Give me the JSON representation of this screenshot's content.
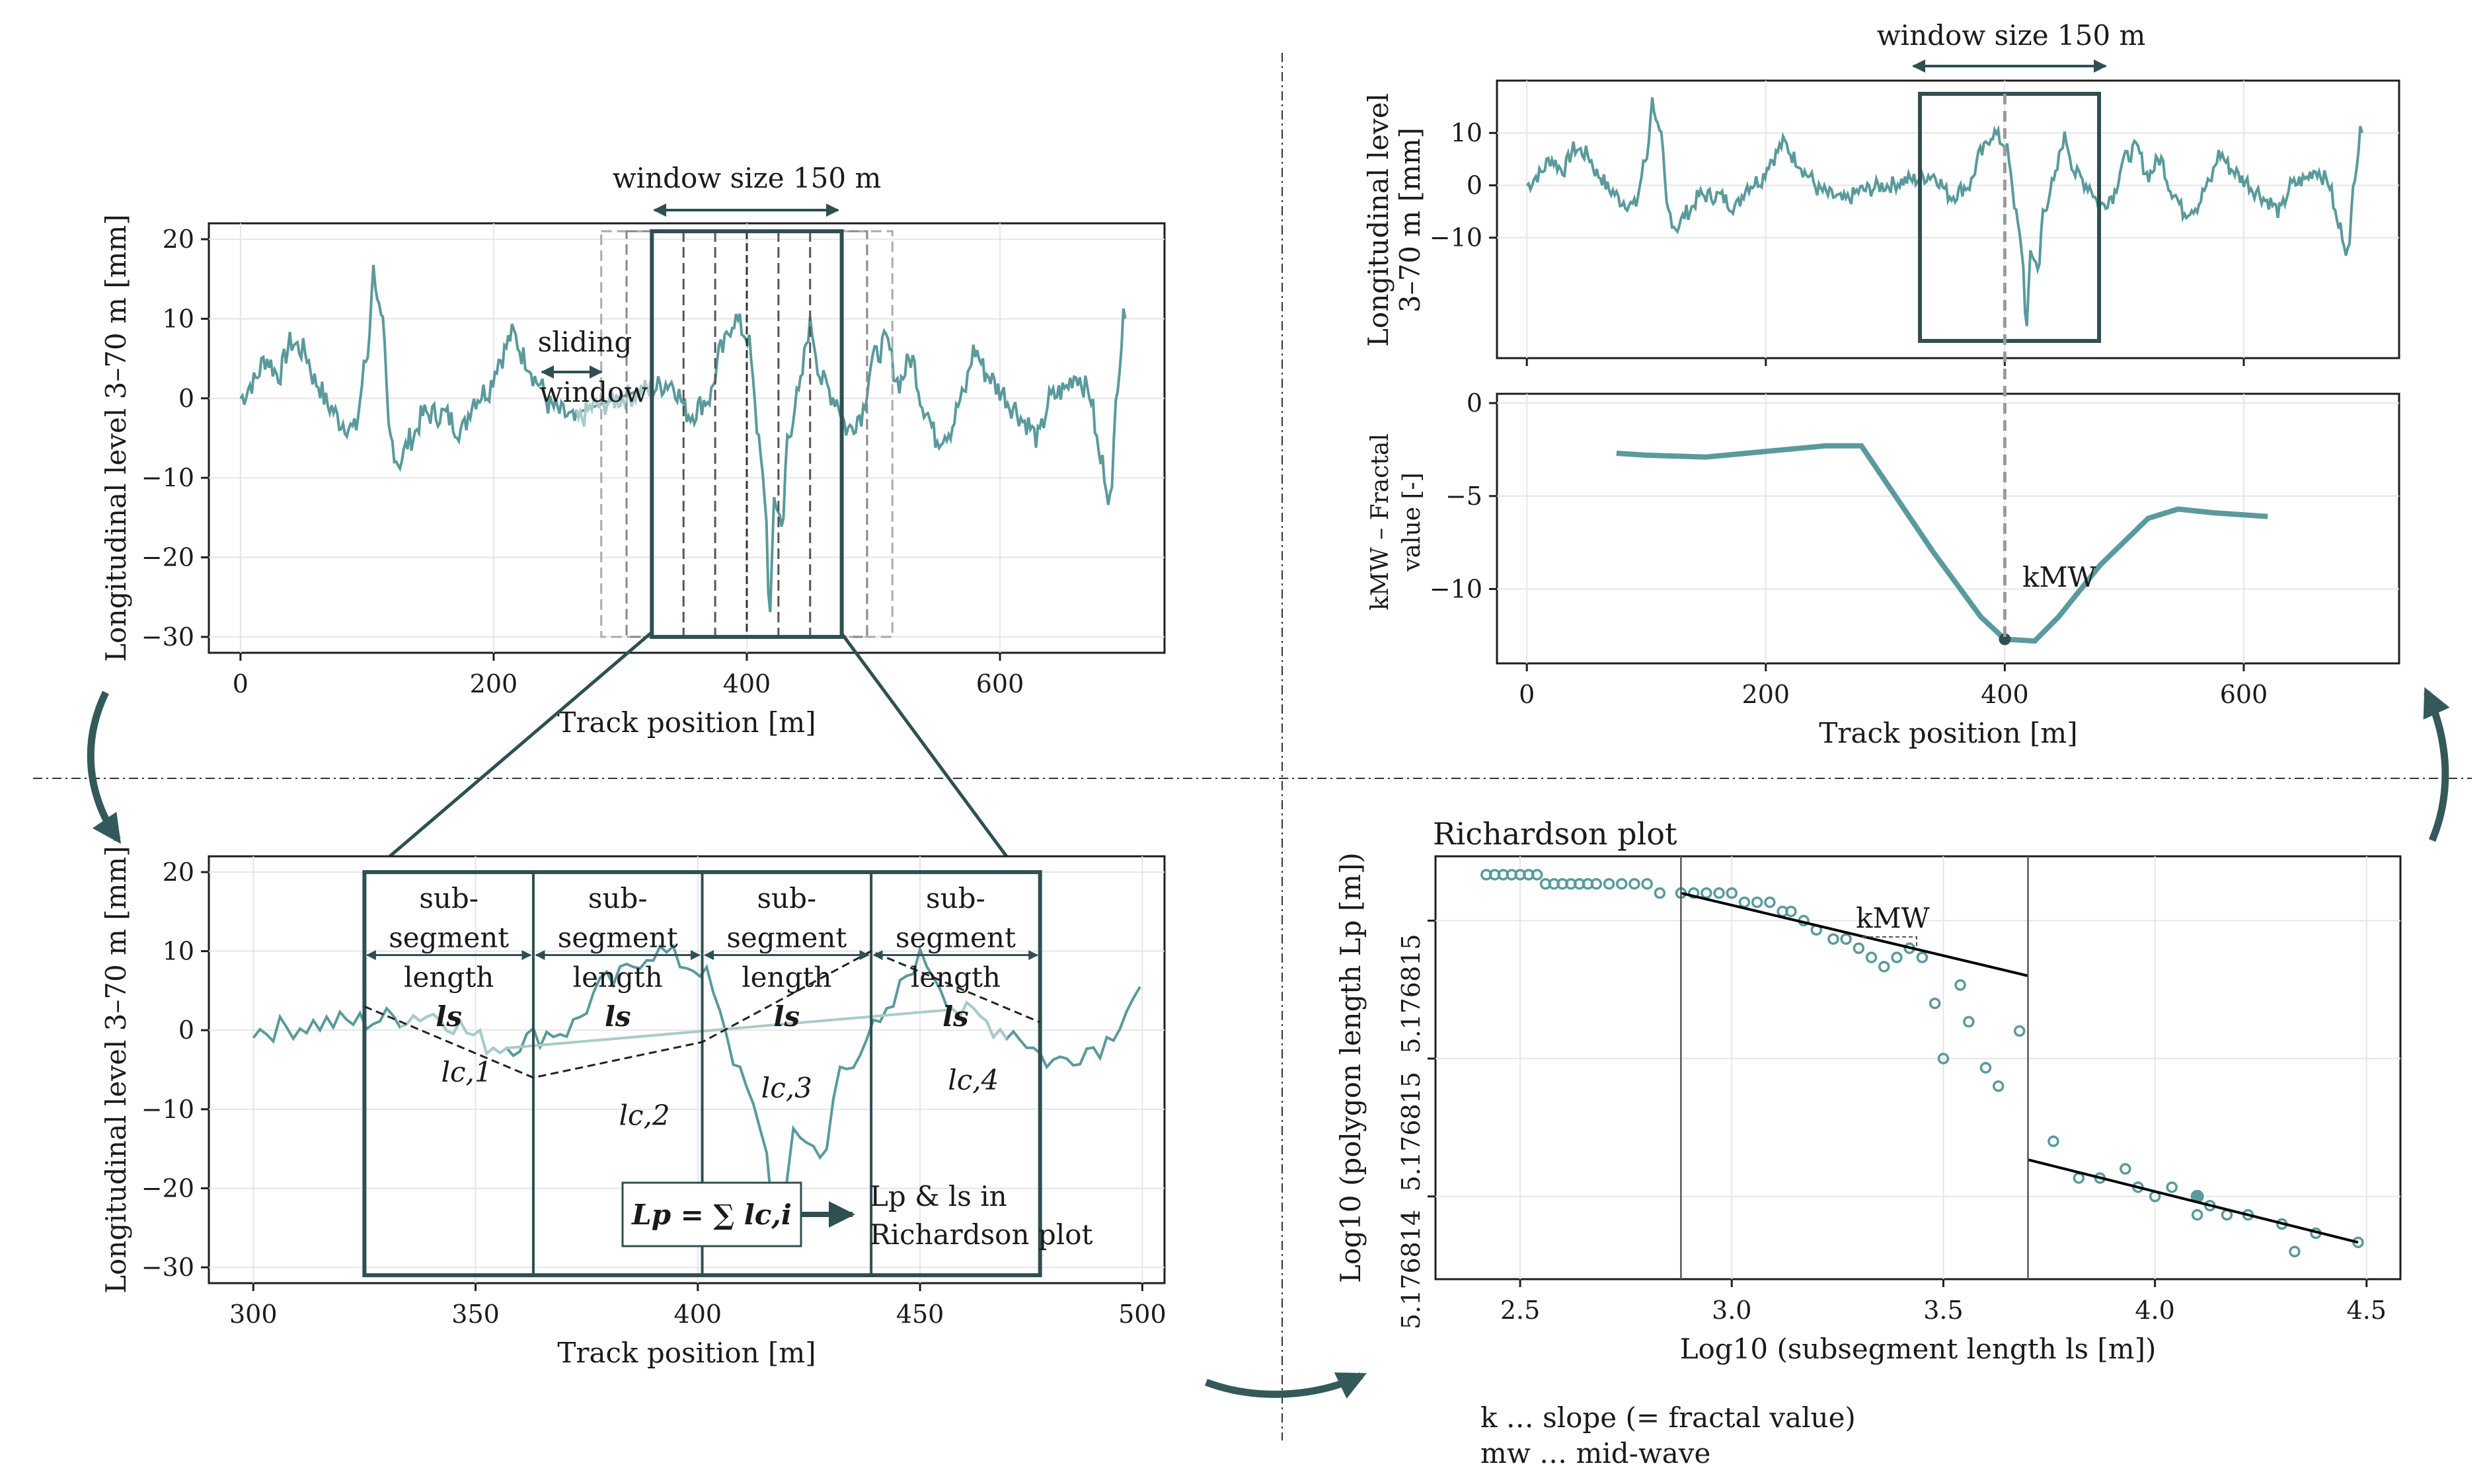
{
  "panel_a": {
    "annotation_window": "window size 150 m",
    "annotation_sliding_1": "sliding",
    "annotation_sliding_2": "window",
    "ylabel": "Longitudinal level 3–70 m [mm]",
    "xlabel": "Track position [m]",
    "yticks": [
      "20",
      "10",
      "0",
      "−10",
      "−20",
      "−30"
    ],
    "xticks": [
      "0",
      "200",
      "400",
      "600"
    ]
  },
  "panel_b": {
    "ylabel": "Longitudinal level 3–70 m [mm]",
    "xlabel": "Track position [m]",
    "yticks": [
      "20",
      "10",
      "0",
      "−10",
      "−20",
      "−30"
    ],
    "xticks": [
      "300",
      "350",
      "400",
      "450",
      "500"
    ],
    "segment_line1": "sub-",
    "segment_line2": "segment",
    "segment_line3": "length",
    "segment_ls": "ls",
    "chord_labels": [
      "lc,1",
      "lc,2",
      "lc,3",
      "lc,4"
    ],
    "formula": "Lp = ∑ lc,i",
    "result_line1": "Lp & ls in",
    "result_line2": "Richardson plot"
  },
  "panel_c": {
    "annotation_window": "window size 150 m",
    "ylabel_1": "Longitudinal level",
    "ylabel_2": "3–70 m [mm]",
    "yticks": [
      "10",
      "0",
      "−10"
    ]
  },
  "panel_d": {
    "ylabel_1": "kMW – Fractal",
    "ylabel_2": "value [-]",
    "xlabel": "Track position [m]",
    "yticks": [
      "0",
      "−5",
      "−10"
    ],
    "xticks": [
      "0",
      "200",
      "400",
      "600"
    ],
    "point_label": "kMW"
  },
  "panel_e": {
    "title": "Richardson plot",
    "ylabel": "Log10 (polygon length Lp [m])",
    "xlabel": "Log10 (subsegment length ls [m])",
    "yticks": [
      "5.176815",
      "5.176815",
      "5.176814"
    ],
    "xticks": [
      "2.5",
      "3.0",
      "3.5",
      "4.0",
      "4.5"
    ],
    "slope_label": "kMW"
  },
  "legend": {
    "line1": "k … slope (= fractal value)",
    "line2": "mw … mid-wave"
  },
  "chart_data": [
    {
      "type": "line",
      "title": "",
      "xlabel": "Track position [m]",
      "ylabel": "Longitudinal level 3–70 m [mm]",
      "xlim": [
        -25,
        730
      ],
      "ylim": [
        -32,
        22
      ],
      "window_center": 400,
      "window_size": 150
    },
    {
      "type": "line",
      "title": "",
      "xlabel": "Track position [m]",
      "ylabel": "Longitudinal level 3–70 m [mm]",
      "xlim": [
        290,
        505
      ],
      "ylim": [
        -32,
        22
      ],
      "segment_bounds": [
        325,
        363,
        401,
        439,
        477
      ]
    },
    {
      "type": "line",
      "title": "",
      "xlabel": "Track position [m]",
      "ylabel": "kMW – Fractal value [-]",
      "xlim": [
        -25,
        730
      ],
      "ylim": [
        -14,
        0.5
      ],
      "x": [
        75,
        100,
        150,
        200,
        250,
        280,
        300,
        340,
        380,
        400,
        425,
        445,
        480,
        520,
        545,
        575,
        620
      ],
      "values": [
        -2.7,
        -2.8,
        -2.9,
        -2.6,
        -2.3,
        -2.3,
        -4.2,
        -8.0,
        -11.5,
        -12.7,
        -12.8,
        -11.5,
        -8.7,
        -6.2,
        -5.7,
        -5.9,
        -6.1
      ],
      "highlight": {
        "x": 400,
        "y": -12.7
      }
    },
    {
      "type": "scatter",
      "title": "Richardson plot",
      "xlabel": "Log10 (subsegment length ls [m])",
      "ylabel": "Log10 (polygon length Lp [m])",
      "xlim": [
        2.3,
        4.58
      ],
      "x": [
        2.42,
        2.44,
        2.46,
        2.48,
        2.5,
        2.52,
        2.54,
        2.56,
        2.58,
        2.6,
        2.62,
        2.64,
        2.66,
        2.68,
        2.71,
        2.74,
        2.77,
        2.8,
        2.83,
        2.88,
        2.91,
        2.94,
        2.97,
        3.0,
        3.03,
        3.06,
        3.09,
        3.12,
        3.14,
        3.17,
        3.2,
        3.24,
        3.27,
        3.3,
        3.33,
        3.36,
        3.39,
        3.42,
        3.45,
        3.48,
        3.5,
        3.54,
        3.56,
        3.6,
        3.63,
        3.68,
        3.76,
        3.82,
        3.87,
        3.93,
        3.96,
        4.0,
        4.04,
        4.1,
        4.13,
        4.17,
        4.22,
        4.3,
        4.33,
        4.38,
        4.48
      ],
      "values": [
        5.1768157,
        5.1768157,
        5.1768157,
        5.1768157,
        5.1768157,
        5.1768157,
        5.1768157,
        5.1768156,
        5.1768156,
        5.1768156,
        5.1768156,
        5.1768156,
        5.1768156,
        5.1768156,
        5.1768156,
        5.1768156,
        5.1768156,
        5.1768156,
        5.1768155,
        5.1768155,
        5.1768155,
        5.1768155,
        5.1768155,
        5.1768155,
        5.1768154,
        5.1768154,
        5.1768154,
        5.1768153,
        5.1768153,
        5.1768152,
        5.1768151,
        5.176815,
        5.176815,
        5.1768149,
        5.1768148,
        5.1768147,
        5.1768148,
        5.1768149,
        5.1768148,
        5.1768143,
        5.1768137,
        5.1768145,
        5.1768141,
        5.1768136,
        5.1768134,
        5.176814,
        5.1768128,
        5.1768124,
        5.1768124,
        5.1768125,
        5.1768123,
        5.1768122,
        5.1768123,
        5.176812,
        5.1768121,
        5.176812,
        5.176812,
        5.1768119,
        5.1768116,
        5.1768118,
        5.1768117
      ],
      "highlight": {
        "x": 4.1,
        "y": 5.1768122
      },
      "slope_fits": [
        {
          "x": [
            2.88,
            3.7
          ],
          "y": [
            5.1768155,
            5.1768146
          ]
        },
        {
          "x": [
            3.7,
            4.48
          ],
          "y": [
            5.1768126,
            5.1768117
          ]
        }
      ],
      "fit_bounds": [
        2.88,
        3.7
      ]
    }
  ]
}
